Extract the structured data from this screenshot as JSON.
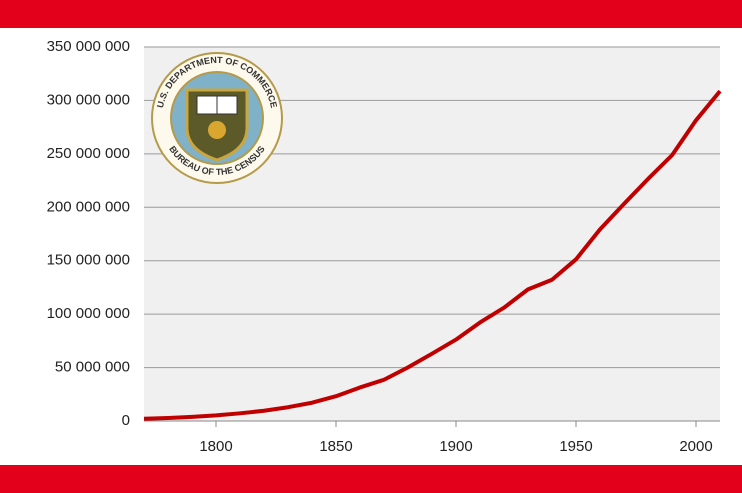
{
  "chart_data": {
    "type": "line",
    "logo": {
      "top_text": "U.S. DEPARTMENT OF COMMERCE",
      "bottom_text": "BUREAU OF THE CENSUS"
    },
    "x": [
      1770,
      1780,
      1790,
      1800,
      1810,
      1820,
      1830,
      1840,
      1850,
      1860,
      1870,
      1880,
      1890,
      1900,
      1910,
      1920,
      1930,
      1940,
      1950,
      1960,
      1970,
      1980,
      1990,
      2000,
      2010
    ],
    "series": [
      {
        "color": "#c00000",
        "values": [
          2100000,
          2800000,
          3900000,
          5300000,
          7200000,
          9600000,
          12900000,
          17100000,
          23200000,
          31400000,
          38600000,
          50200000,
          63000000,
          76200000,
          92200000,
          106000000,
          123200000,
          132200000,
          151300000,
          179300000,
          203200000,
          226500000,
          248700000,
          281400000,
          308700000
        ]
      }
    ],
    "xlim": [
      1770,
      2010
    ],
    "xticks": [
      1800,
      1850,
      1900,
      1950,
      2000
    ],
    "ylim": [
      0,
      350000000
    ],
    "yticks": [
      0,
      {
        "value": 50000000,
        "label": "50 000 000"
      },
      {
        "value": 100000000,
        "label": "100 000 000"
      },
      {
        "value": 150000000,
        "label": "150 000 000"
      },
      {
        "value": 200000000,
        "label": "200 000 000"
      },
      {
        "value": 250000000,
        "label": "250 000 000"
      },
      {
        "value": 300000000,
        "label": "300 000 000"
      },
      {
        "value": 350000000,
        "label": "350 000 000"
      }
    ],
    "grid": true
  }
}
